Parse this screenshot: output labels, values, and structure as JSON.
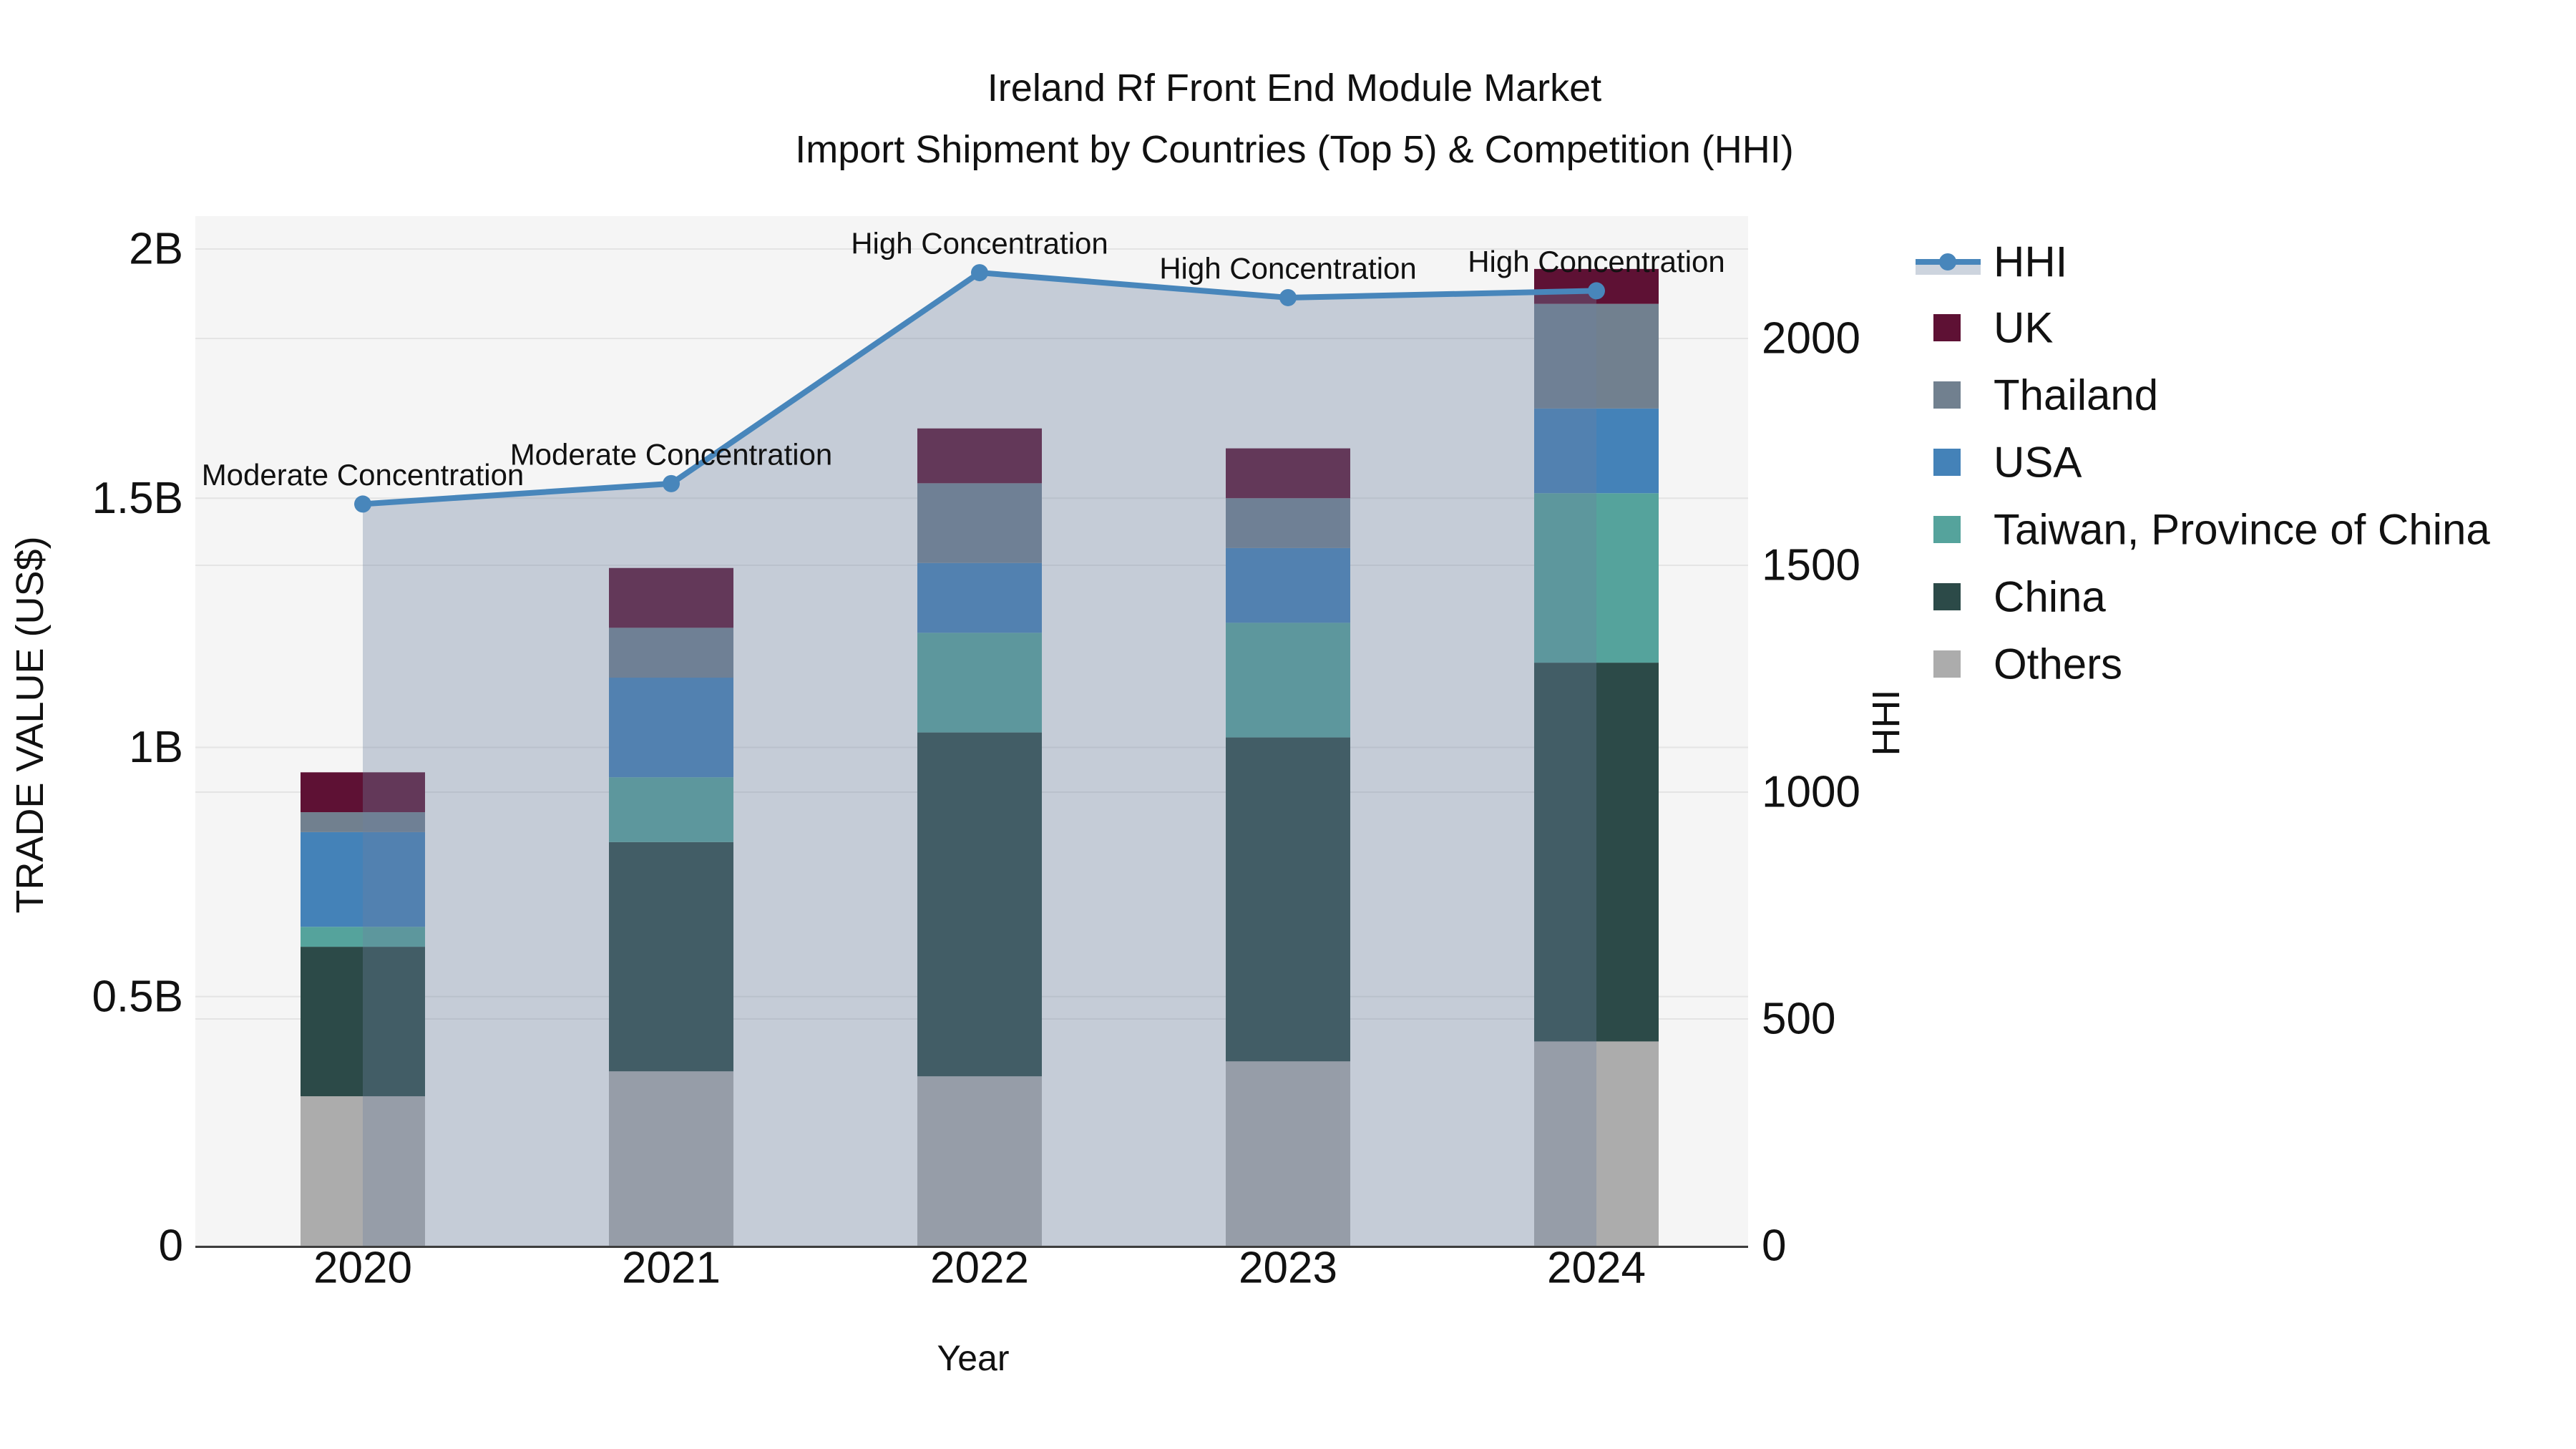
{
  "title": {
    "line1": "Ireland Rf Front End Module Market",
    "line2": "Import Shipment by Countries (Top 5) & Competition (HHI)"
  },
  "axes": {
    "x": {
      "title": "Year",
      "categories": [
        "2020",
        "2021",
        "2022",
        "2023",
        "2024"
      ]
    },
    "y_left": {
      "title": "TRADE VALUE (US$)",
      "tick_labels": [
        "0",
        "0.5B",
        "1B",
        "1.5B",
        "2B"
      ],
      "tick_values": [
        0,
        0.5,
        1,
        1.5,
        2
      ],
      "range": [
        0,
        2.065
      ]
    },
    "y_right": {
      "title": "HHI",
      "tick_labels": [
        "0",
        "500",
        "1000",
        "1500",
        "2000"
      ],
      "tick_values": [
        0,
        500,
        1000,
        1500,
        2000
      ],
      "range": [
        0,
        2270
      ]
    }
  },
  "legend": [
    {
      "label": "HHI",
      "type": "line",
      "color": "#4886BB",
      "band_color": "#CDD4DE"
    },
    {
      "label": "UK",
      "type": "swatch",
      "color": "#5E1134"
    },
    {
      "label": "Thailand",
      "type": "swatch",
      "color": "#71808F"
    },
    {
      "label": "USA",
      "type": "swatch",
      "color": "#4482B8"
    },
    {
      "label": "Taiwan, Province of China",
      "type": "swatch",
      "color": "#55A39C"
    },
    {
      "label": "China",
      "type": "swatch",
      "color": "#2C4A48"
    },
    {
      "label": "Others",
      "type": "swatch",
      "color": "#ACACAC"
    }
  ],
  "chart_data": {
    "type": "bar",
    "subtype": "stacked-bar-with-line",
    "categories": [
      "2020",
      "2021",
      "2022",
      "2023",
      "2024"
    ],
    "bar_unit": "billion US$",
    "series": [
      {
        "name": "Others",
        "color": "#ACACAC",
        "values": [
          0.3,
          0.35,
          0.34,
          0.37,
          0.41
        ]
      },
      {
        "name": "China",
        "color": "#2C4A48",
        "values": [
          0.3,
          0.46,
          0.69,
          0.65,
          0.76
        ]
      },
      {
        "name": "Taiwan, Province of China",
        "color": "#55A39C",
        "values": [
          0.04,
          0.13,
          0.2,
          0.23,
          0.34
        ]
      },
      {
        "name": "USA",
        "color": "#4482B8",
        "values": [
          0.19,
          0.2,
          0.14,
          0.15,
          0.17
        ]
      },
      {
        "name": "Thailand",
        "color": "#71808F",
        "values": [
          0.04,
          0.1,
          0.16,
          0.1,
          0.21
        ]
      },
      {
        "name": "UK",
        "color": "#5E1134",
        "values": [
          0.08,
          0.12,
          0.11,
          0.1,
          0.07
        ]
      }
    ],
    "bar_totals": [
      0.95,
      1.36,
      1.64,
      1.6,
      1.96
    ],
    "line_series": {
      "name": "HHI",
      "color": "#4886BB",
      "area_fill": "rgba(108,130,160,0.35)",
      "values": [
        1635,
        1680,
        2145,
        2090,
        2105
      ]
    },
    "annotations": [
      {
        "category": "2020",
        "text": "Moderate Concentration"
      },
      {
        "category": "2021",
        "text": "Moderate Concentration"
      },
      {
        "category": "2022",
        "text": "High Concentration"
      },
      {
        "category": "2023",
        "text": "High Concentration"
      },
      {
        "category": "2024",
        "text": "High Concentration"
      }
    ],
    "legend_position": "right",
    "grid": true,
    "plot_bg": "#F5F5F5",
    "grid_color": "#E4E4E4",
    "axis_line_color": "#3D3D3D",
    "text_color": "#111111"
  }
}
